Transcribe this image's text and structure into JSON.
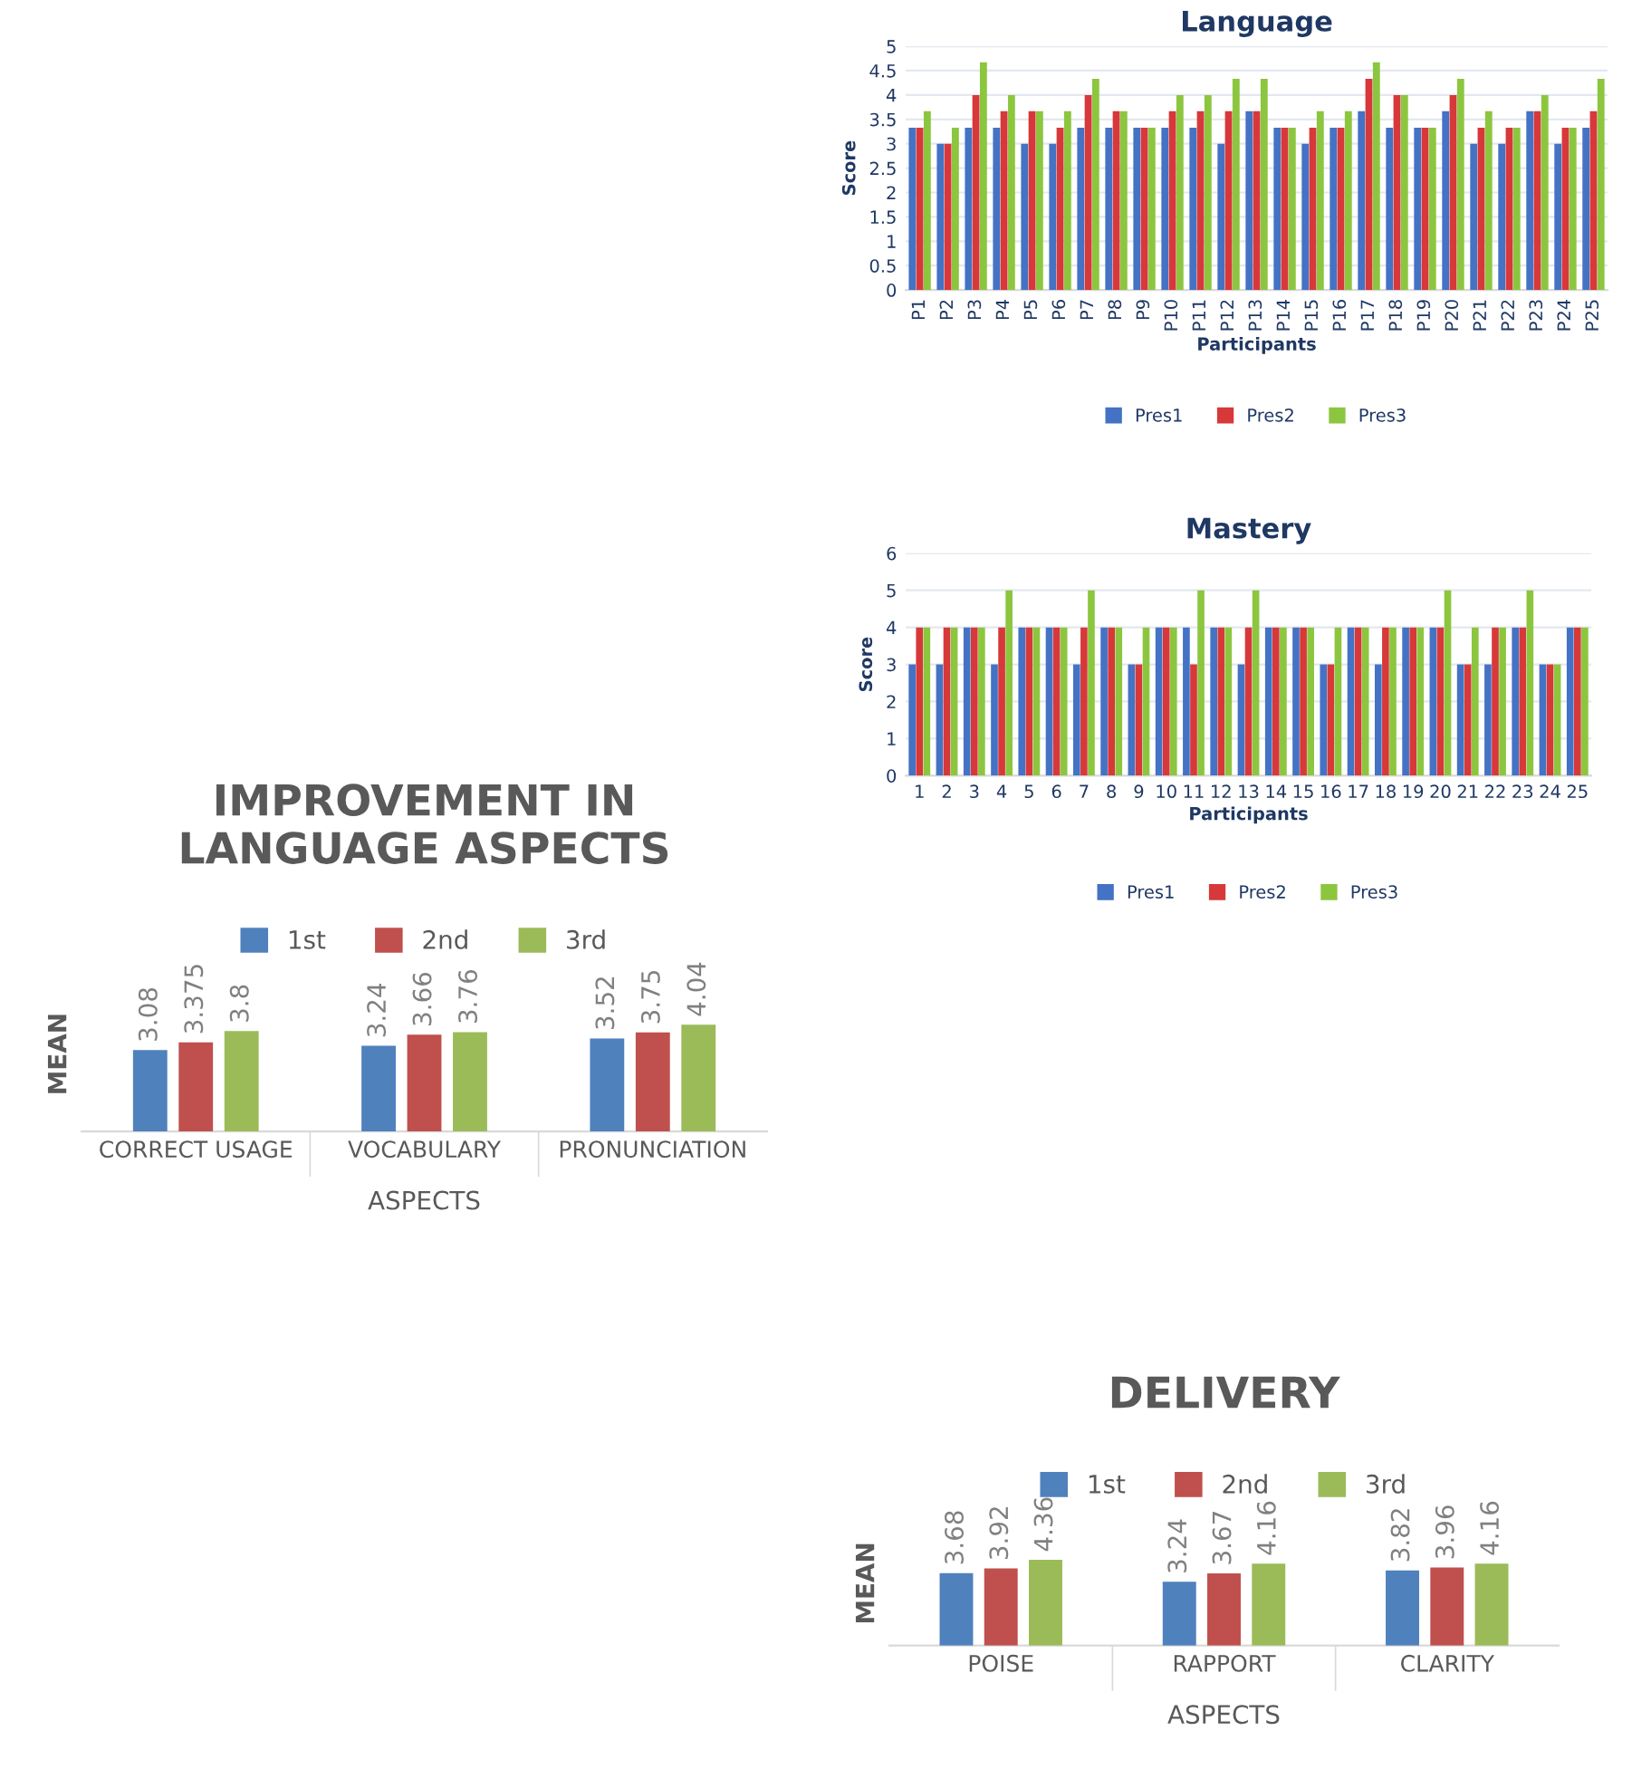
{
  "chart_data": [
    {
      "type": "bar",
      "title": "Language",
      "xlabel": "Participants",
      "ylabel": "Score",
      "categories": [
        "P1",
        "P2",
        "P3",
        "P4",
        "P5",
        "P6",
        "P7",
        "P8",
        "P9",
        "P10",
        "P11",
        "P12",
        "P13",
        "P14",
        "P15",
        "P16",
        "P17",
        "P18",
        "P19",
        "P20",
        "P21",
        "P22",
        "P23",
        "P24",
        "P25"
      ],
      "series": [
        {
          "name": "Pres1",
          "color": "#4472c4",
          "values": [
            3.33,
            3,
            3.33,
            3.33,
            3,
            3,
            3.33,
            3.33,
            3.33,
            3.33,
            3.33,
            3,
            3.67,
            3.33,
            3,
            3.33,
            3.67,
            3.33,
            3.33,
            3.67,
            3,
            3,
            3.67,
            3,
            3.33
          ]
        },
        {
          "name": "Pres2",
          "color": "#d7383a",
          "values": [
            3.33,
            3,
            4,
            3.67,
            3.67,
            3.33,
            4,
            3.67,
            3.33,
            3.67,
            3.67,
            3.67,
            3.67,
            3.33,
            3.33,
            3.33,
            4.33,
            4,
            3.33,
            4,
            3.33,
            3.33,
            3.67,
            3.33,
            3.67
          ]
        },
        {
          "name": "Pres3",
          "color": "#8cc63f",
          "values": [
            3.67,
            3.33,
            4.67,
            4,
            3.67,
            3.67,
            4.33,
            3.67,
            3.33,
            4,
            4,
            4.33,
            4.33,
            3.33,
            3.67,
            3.67,
            4.67,
            4,
            3.33,
            4.33,
            3.67,
            3.33,
            4,
            3.33,
            4.33
          ]
        }
      ],
      "ylim": [
        0,
        5
      ],
      "yticks": [
        0,
        0.5,
        1,
        1.5,
        2,
        2.5,
        3,
        3.5,
        4,
        4.5,
        5
      ],
      "grid": "y",
      "legend": "bottom"
    },
    {
      "type": "bar",
      "title": "Mastery",
      "xlabel": "Participants",
      "ylabel": "Score",
      "categories": [
        "1",
        "2",
        "3",
        "4",
        "5",
        "6",
        "7",
        "8",
        "9",
        "10",
        "11",
        "12",
        "13",
        "14",
        "15",
        "16",
        "17",
        "18",
        "19",
        "20",
        "21",
        "22",
        "23",
        "24",
        "25"
      ],
      "series": [
        {
          "name": "Pres1",
          "color": "#4472c4",
          "values": [
            3,
            3,
            4,
            3,
            4,
            4,
            3,
            4,
            3,
            4,
            4,
            4,
            3,
            4,
            4,
            3,
            4,
            3,
            4,
            4,
            3,
            3,
            4,
            3,
            4
          ]
        },
        {
          "name": "Pres2",
          "color": "#d7383a",
          "values": [
            4,
            4,
            4,
            4,
            4,
            4,
            4,
            4,
            3,
            4,
            3,
            4,
            4,
            4,
            4,
            3,
            4,
            4,
            4,
            4,
            3,
            4,
            4,
            3,
            4
          ]
        },
        {
          "name": "Pres3",
          "color": "#8cc63f",
          "values": [
            4,
            4,
            4,
            5,
            4,
            4,
            5,
            4,
            4,
            4,
            5,
            4,
            5,
            4,
            4,
            4,
            4,
            4,
            4,
            5,
            4,
            4,
            5,
            3,
            4
          ]
        }
      ],
      "ylim": [
        0,
        6
      ],
      "yticks": [
        0,
        1,
        2,
        3,
        4,
        5,
        6
      ],
      "grid": "y",
      "legend": "bottom"
    },
    {
      "type": "bar",
      "title": "IMPROVEMENT IN\nLANGUAGE ASPECTS",
      "xlabel": "ASPECTS",
      "ylabel": "MEAN",
      "categories": [
        "CORRECT USAGE",
        "VOCABULARY",
        "PRONUNCIATION"
      ],
      "series": [
        {
          "name": "1st",
          "color": "#4f81bd",
          "values": [
            3.08,
            3.24,
            3.52
          ]
        },
        {
          "name": "2nd",
          "color": "#c0504d",
          "values": [
            3.375,
            3.66,
            3.75
          ]
        },
        {
          "name": "3rd",
          "color": "#9bbb59",
          "values": [
            3.8,
            3.76,
            4.04
          ]
        }
      ],
      "data_labels": true,
      "legend": "top",
      "tick_labels": "x"
    },
    {
      "type": "bar",
      "title": "DELIVERY",
      "xlabel": "ASPECTS",
      "ylabel": "MEAN",
      "categories": [
        "POISE",
        "RAPPORT",
        "CLARITY"
      ],
      "series": [
        {
          "name": "1st",
          "color": "#4f81bd",
          "values": [
            3.68,
            3.24,
            3.82
          ]
        },
        {
          "name": "2nd",
          "color": "#c0504d",
          "values": [
            3.92,
            3.67,
            3.96
          ]
        },
        {
          "name": "3rd",
          "color": "#9bbb59",
          "values": [
            4.36,
            4.16,
            4.16
          ]
        }
      ],
      "data_labels": true,
      "legend": "top",
      "tick_labels": "x"
    }
  ]
}
